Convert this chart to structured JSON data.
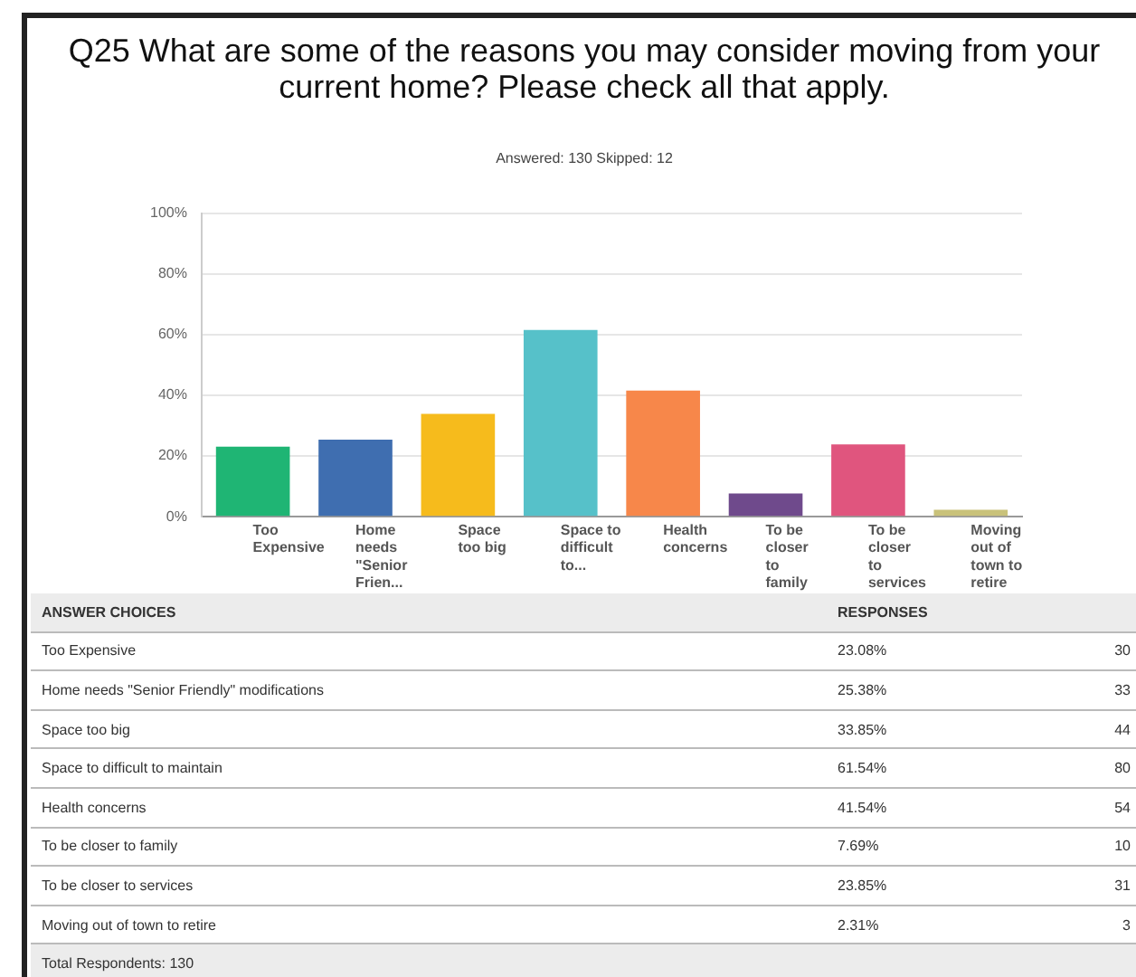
{
  "chart_data": [
    {
      "type": "bar",
      "title": "Q25 What are some of the reasons you may consider moving from your current home? Please check all that apply.",
      "subtitle": "Answered: 130    Skipped: 12",
      "categories": [
        "Too Expensive",
        "Home needs \"Senior Frien...",
        "Space too big",
        "Space to difficult to...",
        "Health concerns",
        "To be closer to family",
        "To be closer to services",
        "Moving out of town to retire"
      ],
      "values": [
        23.08,
        25.38,
        33.85,
        61.54,
        41.54,
        7.69,
        23.85,
        2.31
      ],
      "colors": [
        "#1fb574",
        "#3f6eb0",
        "#f6bb1c",
        "#56c1c9",
        "#f7874a",
        "#6f4a8c",
        "#e0557e",
        "#c9c27a"
      ],
      "ylim": [
        0,
        100
      ],
      "yticks": [
        {
          "value": 0,
          "label": "0%"
        },
        {
          "value": 20,
          "label": "20%"
        },
        {
          "value": 40,
          "label": "40%"
        },
        {
          "value": 60,
          "label": "60%"
        },
        {
          "value": 80,
          "label": "80%"
        },
        {
          "value": 100,
          "label": "100%"
        }
      ],
      "grid": "y"
    },
    {
      "type": "other",
      "data_labels": true,
      "categories": [
        "Too Expensive",
        "Home needs \"Senior Friendly\" modifications",
        "Space too big",
        "Space to difficult to maintain",
        "Health  concerns",
        "To be closer to family",
        "To be closer to services",
        "Moving out of town to retire"
      ],
      "series": [
        {
          "values": [
            23.08,
            25.38,
            33.85,
            61.54,
            41.54,
            7.69,
            23.85,
            2.31
          ],
          "value_labels": [
            "23.08%",
            "25.38%",
            "33.85%",
            "61.54%",
            "41.54%",
            "7.69%",
            "23.85%",
            "2.31%"
          ]
        },
        {
          "values": [
            30,
            33,
            44,
            80,
            54,
            10,
            31,
            3
          ]
        }
      ],
      "annotations": [
        "ANSWER CHOICES",
        "RESPONSES",
        "Total Respondents: 130"
      ]
    }
  ]
}
